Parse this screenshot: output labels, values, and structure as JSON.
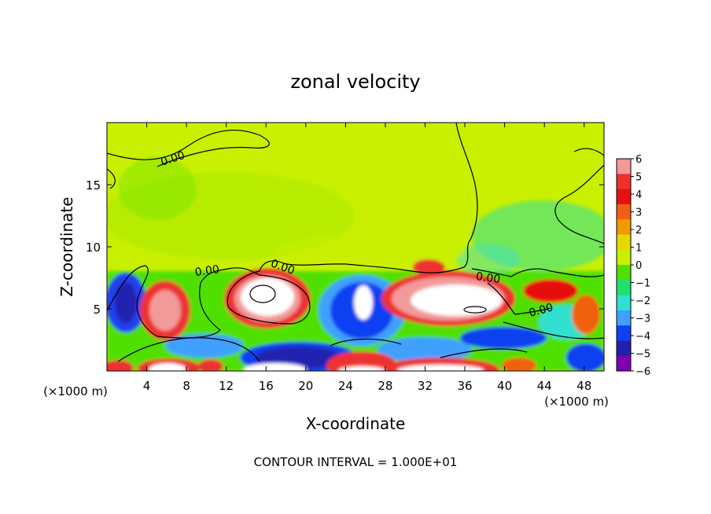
{
  "chart_data": {
    "type": "heatmap",
    "title": "zonal velocity",
    "xlabel": "X-coordinate",
    "ylabel": "Z-coordinate",
    "x_unit_label": "(×1000 m)",
    "x_unit_label_right": "(×1000 m)",
    "footer": "CONTOUR INTERVAL = 1.000E+01",
    "xlim": [
      0,
      50
    ],
    "ylim": [
      0,
      20
    ],
    "x_ticks": [
      4,
      8,
      12,
      16,
      20,
      24,
      28,
      32,
      36,
      40,
      44,
      48
    ],
    "x_tick_labels": [
      "4",
      "8",
      "12",
      "16",
      "20",
      "24",
      "28",
      "32",
      "36",
      "40",
      "44",
      "48"
    ],
    "y_ticks": [
      5,
      10,
      15
    ],
    "y_tick_labels": [
      "5",
      "10",
      "15"
    ],
    "colorbar": {
      "min": -6,
      "max": 6,
      "tick_values": [
        6,
        5,
        4,
        3,
        2,
        1,
        0,
        -1,
        -2,
        -3,
        -4,
        -5,
        -6
      ],
      "tick_labels": [
        "6",
        "5",
        "4",
        "3",
        "2",
        "1",
        "0",
        "−1",
        "−2",
        "−3",
        "−4",
        "−5",
        "−6"
      ],
      "colors": [
        "#f29a9a",
        "#ee3030",
        "#e81010",
        "#f06010",
        "#f09a00",
        "#e6d800",
        "#c8f000",
        "#50e000",
        "#20e070",
        "#30e0d0",
        "#40a0ff",
        "#1040f0",
        "#2020b0",
        "#8000b0"
      ]
    },
    "contour_labels": [
      "0.00",
      "0.00",
      "0.00",
      "0.00",
      "0.00"
    ],
    "background_value": 0.5
  }
}
